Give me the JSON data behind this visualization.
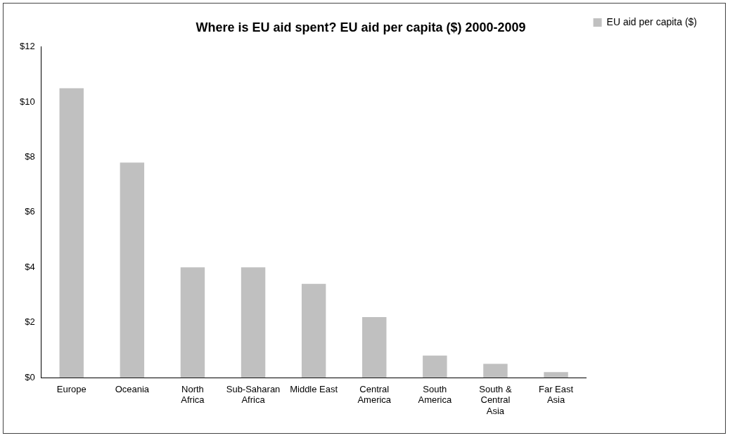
{
  "chart_data": {
    "type": "bar",
    "title": "Where is EU aid spent? EU aid per capita ($) 2000-2009",
    "categories": [
      "Europe",
      "Oceania",
      "North Africa",
      "Sub-Saharan Africa",
      "Middle East",
      "Central America",
      "South America",
      "South & Central Asia",
      "Far East Asia"
    ],
    "series": [
      {
        "name": "EU aid per capita ($)",
        "color": "#c0c0c0",
        "values": [
          10.5,
          7.8,
          4.0,
          4.0,
          3.4,
          2.2,
          0.8,
          0.5,
          0.2
        ]
      }
    ],
    "ylim": [
      0,
      12
    ],
    "yticks": [
      {
        "value": 0,
        "label": "$0"
      },
      {
        "value": 2,
        "label": "$2"
      },
      {
        "value": 4,
        "label": "$4"
      },
      {
        "value": 6,
        "label": "$6"
      },
      {
        "value": 8,
        "label": "$8"
      },
      {
        "value": 10,
        "label": "$10"
      },
      {
        "value": 12,
        "label": "$12"
      }
    ],
    "grid": false,
    "legend": "top right"
  }
}
